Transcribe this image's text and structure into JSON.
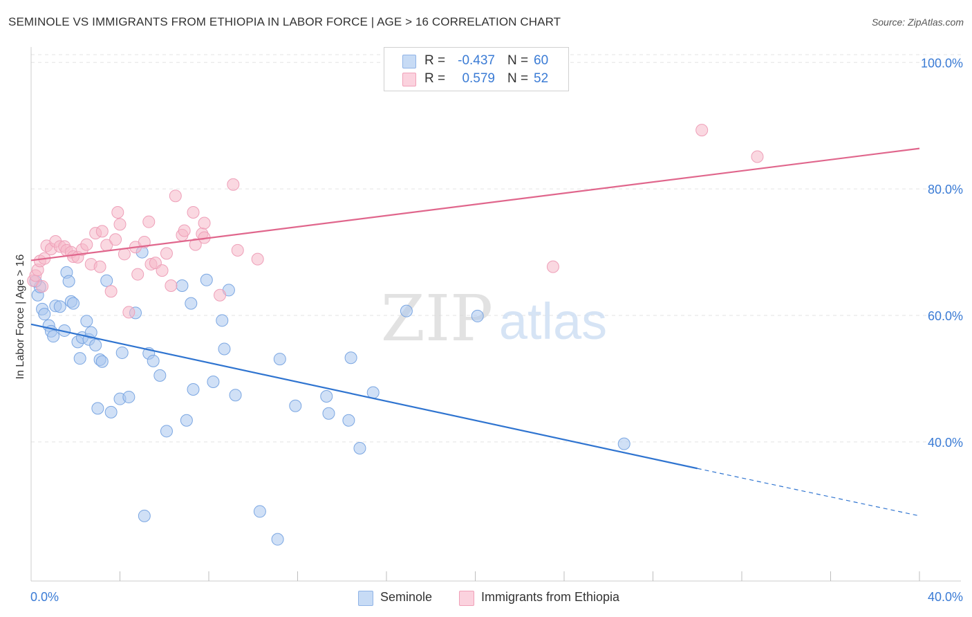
{
  "header": {
    "title": "SEMINOLE VS IMMIGRANTS FROM ETHIOPIA IN LABOR FORCE | AGE > 16 CORRELATION CHART",
    "source": "Source: ZipAtlas.com"
  },
  "watermark": {
    "zip": "ZIP",
    "atlas": "atlas"
  },
  "legend": {
    "rows": [
      {
        "r_label": "R =",
        "r_value": "-0.437",
        "n_label": "N =",
        "n_value": "60",
        "color": "#a9c6ee"
      },
      {
        "r_label": "R =",
        "r_value": "0.579",
        "n_label": "N =",
        "n_value": "52",
        "color": "#f5b8c9"
      }
    ]
  },
  "bottom_legend": {
    "items": [
      "Seminole",
      "Immigrants from Ethiopia"
    ]
  },
  "chart_data": {
    "type": "scatter",
    "title": "SEMINOLE VS IMMIGRANTS FROM ETHIOPIA IN LABOR FORCE | AGE > 16 CORRELATION CHART",
    "xlabel": "",
    "ylabel": "In Labor Force | Age > 16",
    "xlim": [
      0,
      40
    ],
    "ylim": [
      18,
      102
    ],
    "x_tick_labels": [
      "0.0%",
      "40.0%"
    ],
    "y_ticks": [
      40,
      60,
      80,
      100
    ],
    "y_tick_labels": [
      "40.0%",
      "60.0%",
      "80.0%",
      "100.0%"
    ],
    "grid": true,
    "legend_position": "top-center",
    "series": [
      {
        "name": "Seminole",
        "color": "#a9c6ee",
        "line_color": "#2f74d0",
        "trend": {
          "x0": 0,
          "y0": 58.6,
          "x1": 30,
          "y1": 35.8,
          "dash_to_x": 40,
          "dash_to_y": 28.3
        },
        "points": [
          [
            0.3,
            63.2
          ],
          [
            0.4,
            64.5
          ],
          [
            0.5,
            61.0
          ],
          [
            0.6,
            60.2
          ],
          [
            0.8,
            58.4
          ],
          [
            0.9,
            57.5
          ],
          [
            1.0,
            56.7
          ],
          [
            1.1,
            61.5
          ],
          [
            1.3,
            61.4
          ],
          [
            1.5,
            57.6
          ],
          [
            1.6,
            66.8
          ],
          [
            1.7,
            65.4
          ],
          [
            1.8,
            62.2
          ],
          [
            1.9,
            61.9
          ],
          [
            2.1,
            55.8
          ],
          [
            2.2,
            53.2
          ],
          [
            2.3,
            56.5
          ],
          [
            2.5,
            59.1
          ],
          [
            2.6,
            56.2
          ],
          [
            2.7,
            57.3
          ],
          [
            2.9,
            55.3
          ],
          [
            3.0,
            45.3
          ],
          [
            3.1,
            53.0
          ],
          [
            3.2,
            52.7
          ],
          [
            3.4,
            65.5
          ],
          [
            3.6,
            44.7
          ],
          [
            4.0,
            46.8
          ],
          [
            4.1,
            54.1
          ],
          [
            4.4,
            47.1
          ],
          [
            4.7,
            60.4
          ],
          [
            5.0,
            70.0
          ],
          [
            5.1,
            28.3
          ],
          [
            5.3,
            54.0
          ],
          [
            5.5,
            52.8
          ],
          [
            5.8,
            50.5
          ],
          [
            6.1,
            41.7
          ],
          [
            6.8,
            64.7
          ],
          [
            7.0,
            43.4
          ],
          [
            7.2,
            61.9
          ],
          [
            7.3,
            48.3
          ],
          [
            7.9,
            65.6
          ],
          [
            8.2,
            49.5
          ],
          [
            8.6,
            59.2
          ],
          [
            8.7,
            54.7
          ],
          [
            8.9,
            64.0
          ],
          [
            9.2,
            47.4
          ],
          [
            10.3,
            29.0
          ],
          [
            11.1,
            24.6
          ],
          [
            11.2,
            53.1
          ],
          [
            11.9,
            45.7
          ],
          [
            13.3,
            47.2
          ],
          [
            13.4,
            44.5
          ],
          [
            14.3,
            43.4
          ],
          [
            14.4,
            53.3
          ],
          [
            14.8,
            39.0
          ],
          [
            15.4,
            47.8
          ],
          [
            16.9,
            60.7
          ],
          [
            20.1,
            59.9
          ],
          [
            26.7,
            39.7
          ],
          [
            0.2,
            65.4
          ]
        ]
      },
      {
        "name": "Immigrants from Ethiopia",
        "color": "#f5b8c9",
        "line_color": "#e0668c",
        "trend": {
          "x0": 0,
          "y0": 68.7,
          "x1": 40,
          "y1": 86.4
        },
        "points": [
          [
            0.1,
            65.5
          ],
          [
            0.2,
            66.3
          ],
          [
            0.3,
            67.2
          ],
          [
            0.4,
            68.6
          ],
          [
            0.6,
            69.0
          ],
          [
            0.7,
            71.0
          ],
          [
            0.9,
            70.5
          ],
          [
            1.1,
            71.7
          ],
          [
            1.3,
            70.9
          ],
          [
            1.5,
            70.9
          ],
          [
            1.6,
            70.3
          ],
          [
            1.8,
            70.0
          ],
          [
            1.9,
            69.3
          ],
          [
            2.1,
            69.2
          ],
          [
            2.3,
            70.4
          ],
          [
            2.5,
            71.2
          ],
          [
            2.7,
            68.1
          ],
          [
            2.9,
            73.0
          ],
          [
            3.1,
            67.7
          ],
          [
            3.2,
            73.3
          ],
          [
            3.4,
            71.1
          ],
          [
            3.6,
            63.8
          ],
          [
            3.8,
            72.0
          ],
          [
            3.9,
            76.3
          ],
          [
            4.0,
            74.4
          ],
          [
            4.2,
            69.7
          ],
          [
            4.4,
            60.5
          ],
          [
            4.7,
            70.8
          ],
          [
            4.8,
            66.5
          ],
          [
            5.1,
            71.6
          ],
          [
            5.3,
            74.8
          ],
          [
            5.4,
            68.1
          ],
          [
            5.6,
            68.3
          ],
          [
            5.9,
            67.1
          ],
          [
            6.1,
            69.8
          ],
          [
            6.3,
            64.7
          ],
          [
            6.5,
            78.9
          ],
          [
            6.8,
            72.7
          ],
          [
            6.9,
            73.4
          ],
          [
            7.3,
            76.3
          ],
          [
            7.4,
            71.2
          ],
          [
            7.7,
            72.9
          ],
          [
            7.8,
            74.6
          ],
          [
            7.8,
            72.3
          ],
          [
            8.5,
            63.2
          ],
          [
            9.1,
            80.7
          ],
          [
            9.3,
            70.3
          ],
          [
            10.2,
            68.9
          ],
          [
            23.5,
            67.7
          ],
          [
            30.2,
            89.3
          ],
          [
            32.7,
            85.1
          ],
          [
            0.5,
            64.6
          ]
        ]
      }
    ]
  }
}
